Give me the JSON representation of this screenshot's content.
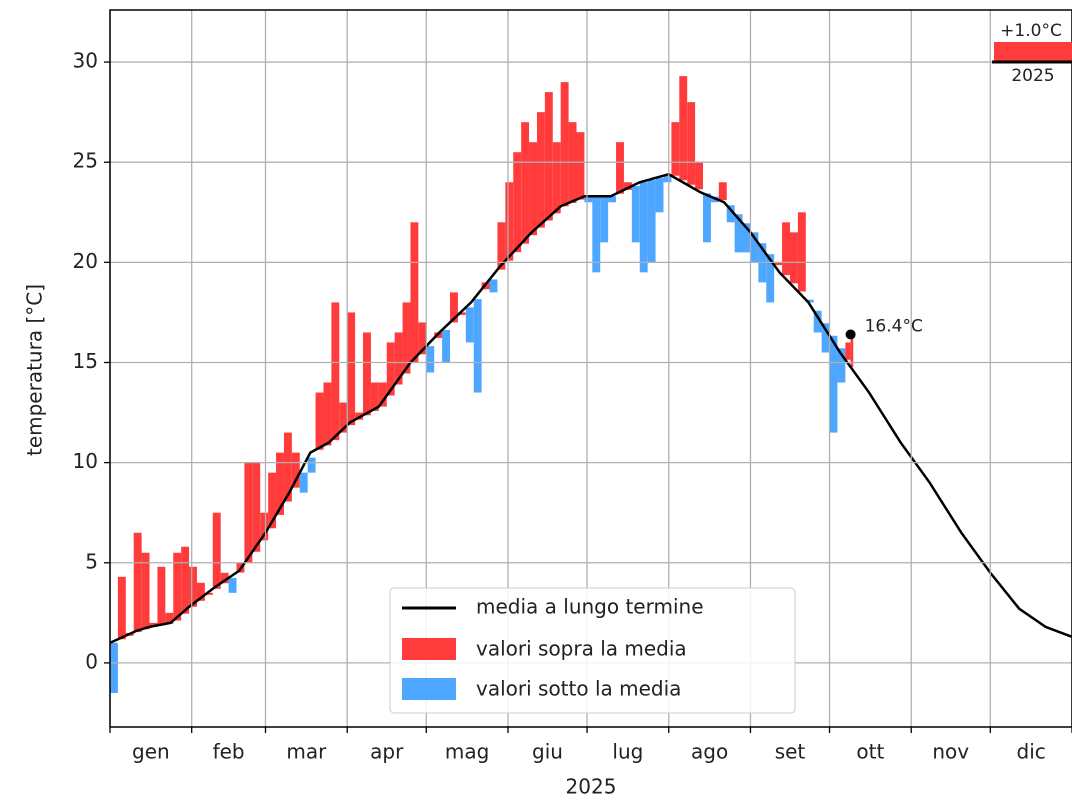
{
  "chart_data": {
    "type": "line",
    "ylabel": "temperatura [°C]",
    "xlabel": "2025",
    "ylim": [
      -3.2,
      32.6
    ],
    "yticks": [
      0,
      5,
      10,
      15,
      20,
      25,
      30
    ],
    "xlim": [
      0,
      365
    ],
    "xticks": [
      0,
      31,
      59,
      90,
      120,
      151,
      181,
      212,
      243,
      273,
      304,
      334,
      365
    ],
    "categories": [
      "gen",
      "feb",
      "mar",
      "apr",
      "mag",
      "giu",
      "lug",
      "ago",
      "set",
      "ott",
      "nov",
      "dic"
    ],
    "grid": true,
    "legend_position": "lower center",
    "mean": {
      "name": "media a lungo termine",
      "color": "#000000",
      "x": [
        0,
        10,
        15,
        23,
        30,
        40,
        49,
        59,
        68,
        76,
        83,
        91,
        102,
        114,
        125,
        137,
        148,
        160,
        171,
        180,
        190,
        201,
        212,
        224,
        233,
        243,
        254,
        265,
        277,
        288,
        300,
        311,
        323,
        334,
        345,
        355,
        365
      ],
      "values": [
        1.0,
        1.6,
        1.8,
        2.0,
        2.8,
        3.8,
        4.6,
        6.5,
        8.5,
        10.5,
        11.0,
        12.0,
        12.8,
        15.0,
        16.5,
        18.0,
        19.8,
        21.5,
        22.8,
        23.3,
        23.3,
        24.0,
        24.4,
        23.5,
        23.0,
        21.5,
        19.5,
        18.0,
        15.5,
        13.5,
        11.0,
        9.0,
        6.5,
        4.5,
        2.7,
        1.8,
        1.3
      ]
    },
    "above": {
      "name": "valori sopra la media",
      "color": "#ff3b3b"
    },
    "below": {
      "name": "valori sotto la media",
      "color": "#4da6ff"
    },
    "observed": {
      "x": [
        0,
        3,
        6,
        9,
        12,
        15,
        18,
        21,
        24,
        27,
        30,
        33,
        36,
        39,
        42,
        45,
        48,
        51,
        54,
        57,
        60,
        63,
        66,
        69,
        72,
        75,
        78,
        81,
        84,
        87,
        90,
        93,
        96,
        99,
        102,
        105,
        108,
        111,
        114,
        117,
        120,
        123,
        126,
        129,
        132,
        135,
        138,
        141,
        144,
        147,
        150,
        153,
        156,
        159,
        162,
        165,
        168,
        171,
        174,
        177,
        180,
        183,
        186,
        189,
        192,
        195,
        198,
        201,
        204,
        207,
        210,
        213,
        216,
        219,
        222,
        225,
        228,
        231,
        234,
        237,
        240,
        243,
        246,
        249,
        252,
        255,
        258,
        261,
        264,
        267,
        270,
        273,
        276,
        279,
        281
      ],
      "values": [
        -1.5,
        4.3,
        1.5,
        6.5,
        5.5,
        2.0,
        4.8,
        2.5,
        5.5,
        5.8,
        4.8,
        4.0,
        3.5,
        7.5,
        4.5,
        3.5,
        5.0,
        10.0,
        10.0,
        7.5,
        9.5,
        10.5,
        11.5,
        10.5,
        8.5,
        9.5,
        13.5,
        14.0,
        18.0,
        13.0,
        17.5,
        12.5,
        16.5,
        14.0,
        14.0,
        16.0,
        16.5,
        18.0,
        22.0,
        17.0,
        14.5,
        16.5,
        15.0,
        18.5,
        17.5,
        16.0,
        13.5,
        19.0,
        18.5,
        22.0,
        24.0,
        25.5,
        27.0,
        26.0,
        27.5,
        28.5,
        26.0,
        29.0,
        27.0,
        26.5,
        23.0,
        19.5,
        21.0,
        23.0,
        26.0,
        24.0,
        21.0,
        19.5,
        20.0,
        22.5,
        24.0,
        27.0,
        29.3,
        28.0,
        25.0,
        21.0,
        23.0,
        24.0,
        22.0,
        20.5,
        20.5,
        20.0,
        19.0,
        18.0,
        20.0,
        22.0,
        21.5,
        22.5,
        18.0,
        16.5,
        15.5,
        11.5,
        14.0,
        16.0,
        16.4
      ]
    },
    "last_label": "16.4°C",
    "anomaly": {
      "value": 1.0,
      "label": "+1.0°C",
      "year": "2025"
    }
  }
}
